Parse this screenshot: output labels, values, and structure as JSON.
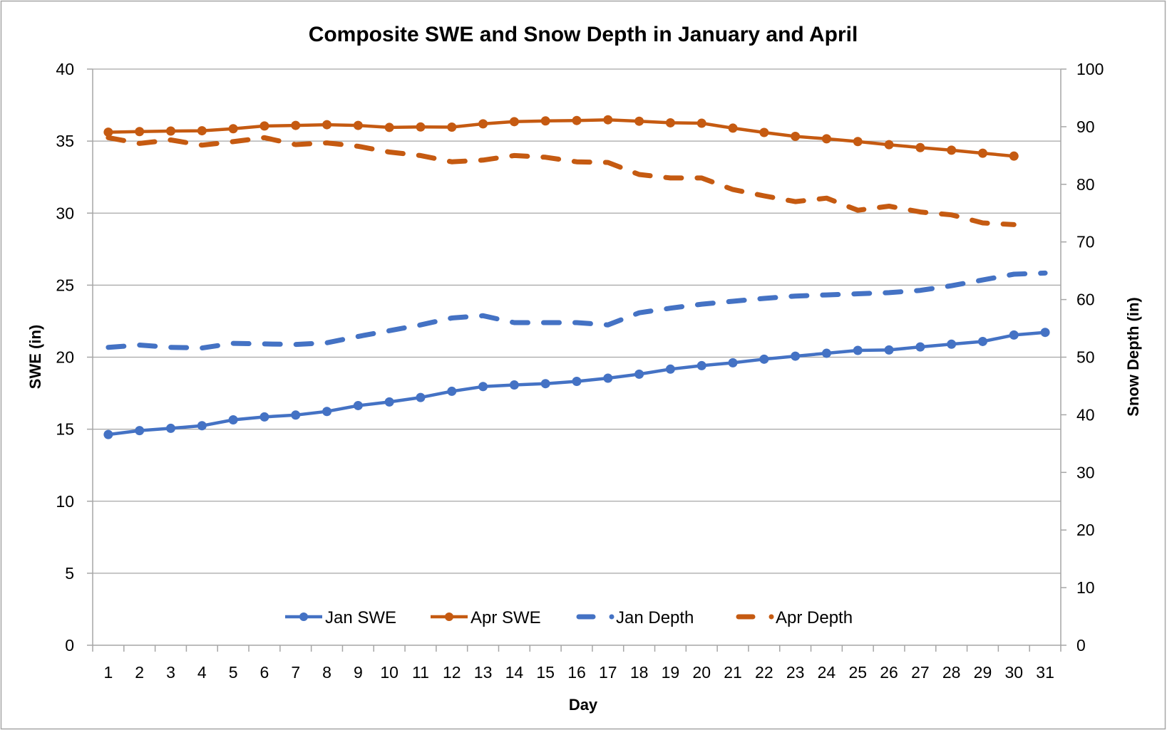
{
  "chart_data": {
    "type": "line",
    "title": "Composite SWE and Snow Depth in January and April",
    "xlabel": "Day",
    "ylabel": "SWE (in)",
    "y2label": "Snow Depth (in)",
    "ylim": [
      0,
      40
    ],
    "y2lim": [
      0,
      100
    ],
    "yticks": [
      "0",
      "5",
      "10",
      "15",
      "20",
      "25",
      "30",
      "35",
      "40"
    ],
    "y2ticks": [
      "0",
      "10",
      "20",
      "30",
      "40",
      "50",
      "60",
      "70",
      "80",
      "90",
      "100"
    ],
    "grid": true,
    "legend_position": "bottom-inside",
    "categories": [
      "1",
      "2",
      "3",
      "4",
      "5",
      "6",
      "7",
      "8",
      "9",
      "10",
      "11",
      "12",
      "13",
      "14",
      "15",
      "16",
      "17",
      "18",
      "19",
      "20",
      "21",
      "22",
      "23",
      "24",
      "25",
      "26",
      "27",
      "28",
      "29",
      "30",
      "31"
    ],
    "series": [
      {
        "name": "Jan SWE",
        "axis": "left",
        "style": "solid-marker",
        "color": "#4472c4",
        "values": [
          14.63,
          14.9,
          15.06,
          15.24,
          15.65,
          15.85,
          15.98,
          16.23,
          16.64,
          16.89,
          17.2,
          17.63,
          17.96,
          18.07,
          18.16,
          18.32,
          18.54,
          18.82,
          19.17,
          19.41,
          19.61,
          19.86,
          20.07,
          20.27,
          20.47,
          20.5,
          20.71,
          20.9,
          21.09,
          21.54,
          21.72
        ]
      },
      {
        "name": "Apr SWE",
        "axis": "left",
        "style": "solid-marker",
        "color": "#c55a11",
        "values": [
          35.62,
          35.66,
          35.7,
          35.72,
          35.86,
          36.05,
          36.09,
          36.14,
          36.09,
          35.95,
          35.98,
          35.97,
          36.2,
          36.35,
          36.4,
          36.43,
          36.48,
          36.38,
          36.27,
          36.24,
          35.9,
          35.6,
          35.33,
          35.16,
          34.97,
          34.75,
          34.55,
          34.37,
          34.16,
          33.96,
          null
        ]
      },
      {
        "name": "Jan Depth",
        "axis": "right",
        "style": "dashed",
        "color": "#4472c4",
        "values": [
          51.7,
          52.1,
          51.7,
          51.6,
          52.4,
          52.3,
          52.2,
          52.5,
          53.6,
          54.6,
          55.6,
          56.8,
          57.2,
          56.0,
          56.0,
          56.0,
          55.6,
          57.7,
          58.5,
          59.2,
          59.7,
          60.2,
          60.6,
          60.8,
          61.0,
          61.2,
          61.6,
          62.4,
          63.4,
          64.4,
          64.6
        ]
      },
      {
        "name": "Apr Depth",
        "axis": "right",
        "style": "dashed",
        "color": "#c55a11",
        "values": [
          88.1,
          87.1,
          87.7,
          86.8,
          87.4,
          88.1,
          86.9,
          87.2,
          86.6,
          85.6,
          85.0,
          83.9,
          84.2,
          85.0,
          84.7,
          83.9,
          83.8,
          81.7,
          81.1,
          81.1,
          79.1,
          78.0,
          77.0,
          77.6,
          75.5,
          76.2,
          75.2,
          74.7,
          73.3,
          73.0,
          null
        ]
      }
    ]
  }
}
